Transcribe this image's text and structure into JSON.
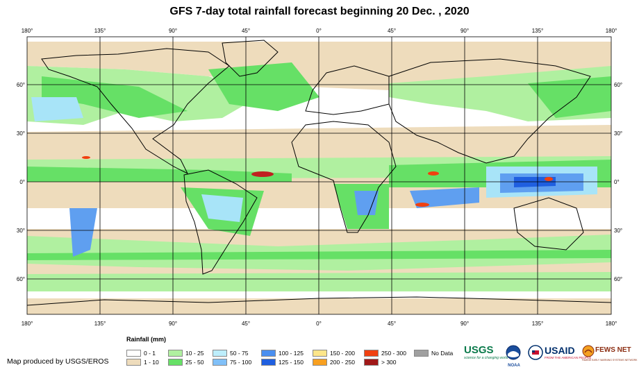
{
  "title": "GFS 7-day total rainfall forecast beginning 20 Dec. , 2020",
  "map": {
    "lon_ticks_top": [
      "180°",
      "135°",
      "90°",
      "45°",
      "0°",
      "45°",
      "90°",
      "135°",
      "180°"
    ],
    "lon_ticks_bottom": [
      "180°",
      "135°",
      "90°",
      "45°",
      "0°",
      "45°",
      "90°",
      "135°",
      "180°"
    ],
    "lat_ticks_left": [
      "60°",
      "30°",
      "0°",
      "30°",
      "60°"
    ],
    "lat_ticks_right": [
      "60°",
      "30°",
      "0°",
      "30°",
      "60°"
    ],
    "colors": {
      "ocean_dry": "#ffffff",
      "light": "#eedcbc",
      "moderate": "#b0f0a0",
      "heavy": "#66e066",
      "very_heavy": "#a8e4f8",
      "extreme": "#5f9ff0",
      "deep": "#1f5fe0",
      "peak": "#c02020"
    }
  },
  "legend": {
    "title": "Rainfall (mm)",
    "items": [
      {
        "label": "0 - 1",
        "color": "#ffffff"
      },
      {
        "label": "1 - 10",
        "color": "#eedcbc"
      },
      {
        "label": "10 - 25",
        "color": "#b0f0a0"
      },
      {
        "label": "25 - 50",
        "color": "#66e066"
      },
      {
        "label": "50 - 75",
        "color": "#bdeefc"
      },
      {
        "label": "75 - 100",
        "color": "#80c0f8"
      },
      {
        "label": "100 - 125",
        "color": "#4a8ff0"
      },
      {
        "label": "125 - 150",
        "color": "#1f5fe0"
      },
      {
        "label": "150 - 200",
        "color": "#fde68a"
      },
      {
        "label": "200 - 250",
        "color": "#f8a020"
      },
      {
        "label": "250 - 300",
        "color": "#f04010"
      },
      {
        "label": "> 300",
        "color": "#a01818"
      },
      {
        "label": "No Data",
        "color": "#a0a0a0"
      }
    ]
  },
  "credit": "Map produced by USGS/EROS",
  "logos": {
    "usgs": "USGS",
    "usgs_tagline": "science for a changing world",
    "noaa": "NOAA",
    "usaid": "USAID",
    "usaid_tagline": "FROM THE AMERICAN PEOPLE",
    "fewsnet": "FEWS NET",
    "fewsnet_tagline": "FAMINE EARLY WARNING SYSTEMS NETWORK"
  }
}
